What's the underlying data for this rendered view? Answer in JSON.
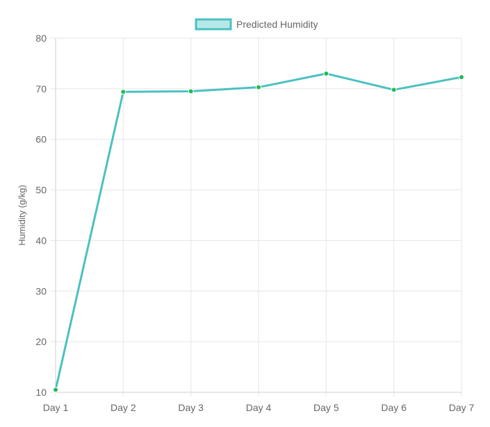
{
  "chart_data": {
    "type": "line",
    "categories": [
      "Day 1",
      "Day 2",
      "Day 3",
      "Day 4",
      "Day 5",
      "Day 6",
      "Day 7"
    ],
    "series": [
      {
        "name": "Predicted Humidity",
        "values": [
          10.5,
          69.4,
          69.5,
          70.3,
          73.0,
          69.8,
          72.3
        ],
        "line_color": "#4bc0c0",
        "fill_color": "#b7e8e8",
        "point_color": "#22bb55"
      }
    ],
    "title": "",
    "xlabel": "",
    "ylabel": "Humidity (g/kg)",
    "ylim": [
      10,
      80
    ],
    "yticks": [
      10,
      20,
      30,
      40,
      50,
      60,
      70,
      80
    ],
    "grid": true,
    "legend_position": "top-center",
    "colors": {
      "grid": "#e6e6e6",
      "axis": "#cfcfcf",
      "tick_text": "#666666"
    }
  }
}
